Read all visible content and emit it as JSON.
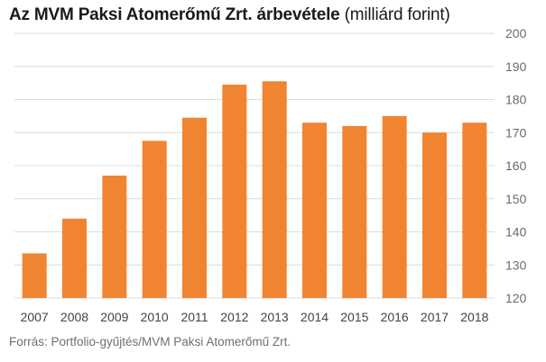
{
  "header": {
    "title_bold": "Az MVM Paksi Atomerőmű Zrt. árbevétele",
    "title_unit": "(milliárd forint)"
  },
  "footer": {
    "source": "Forrás: Portfolio-gyűjtés/MVM Paksi Atomerőmű Zrt."
  },
  "chart_data": {
    "type": "bar",
    "title": "Az MVM Paksi Atomerőmű Zrt. árbevétele (milliárd forint)",
    "categories": [
      "2007",
      "2008",
      "2009",
      "2010",
      "2011",
      "2012",
      "2013",
      "2014",
      "2015",
      "2016",
      "2017",
      "2018"
    ],
    "values": [
      133.5,
      144,
      157,
      167.5,
      174.5,
      184.5,
      185.5,
      173,
      172,
      175,
      170,
      173
    ],
    "yticks": [
      120,
      130,
      140,
      150,
      160,
      170,
      180,
      190,
      200
    ],
    "ylim": [
      120,
      200
    ],
    "y_axis_side": "right",
    "grid": true,
    "bar_color": "#F08431",
    "grid_color": "#dcdcdc"
  }
}
